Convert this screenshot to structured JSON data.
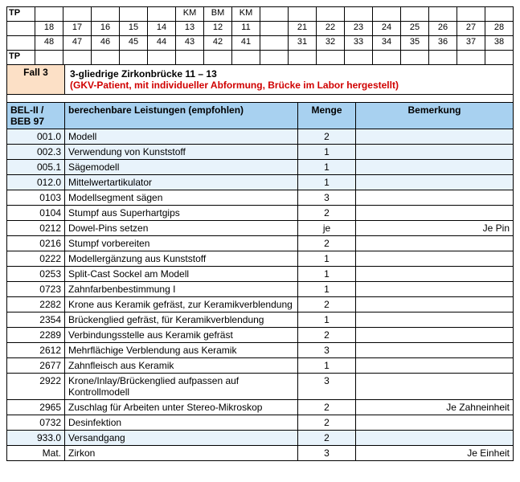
{
  "tooth_chart": {
    "tp_label": "TP",
    "markers_row": [
      "",
      "",
      "",
      "",
      "",
      "",
      "KM",
      "BM",
      "KM",
      "",
      "",
      "",
      "",
      "",
      "",
      "",
      "",
      ""
    ],
    "upper": [
      "",
      "18",
      "17",
      "16",
      "15",
      "14",
      "13",
      "12",
      "11",
      "",
      "21",
      "22",
      "23",
      "24",
      "25",
      "26",
      "27",
      "28"
    ],
    "lower": [
      "",
      "48",
      "47",
      "46",
      "45",
      "44",
      "43",
      "42",
      "41",
      "",
      "31",
      "32",
      "33",
      "34",
      "35",
      "36",
      "37",
      "38"
    ]
  },
  "case": {
    "label": "Fall 3",
    "title": "3-gliedrige Zirkonbrücke 11 – 13",
    "subtitle": "(GKV-Patient, mit individueller Abformung, Brücke im Labor hergestellt)"
  },
  "headers": {
    "code": "BEL-II / BEB 97",
    "desc": "berechenbare Leistungen (empfohlen)",
    "qty": "Menge",
    "remark": "Bemerkung"
  },
  "rows": [
    {
      "code": "001.0",
      "desc": "Modell",
      "qty": "2",
      "remark": "",
      "shade": true
    },
    {
      "code": "002.3",
      "desc": "Verwendung von Kunststoff",
      "qty": "1",
      "remark": "",
      "shade": true
    },
    {
      "code": "005.1",
      "desc": "Sägemodell",
      "qty": "1",
      "remark": "",
      "shade": true
    },
    {
      "code": "012.0",
      "desc": "Mittelwertartikulator",
      "qty": "1",
      "remark": "",
      "shade": true
    },
    {
      "code": "0103",
      "desc": "Modellsegment sägen",
      "qty": "3",
      "remark": "",
      "shade": false
    },
    {
      "code": "0104",
      "desc": "Stumpf aus Superhartgips",
      "qty": "2",
      "remark": "",
      "shade": false
    },
    {
      "code": "0212",
      "desc": "Dowel-Pins setzen",
      "qty": "je",
      "remark": "Je Pin",
      "shade": false
    },
    {
      "code": "0216",
      "desc": "Stumpf vorbereiten",
      "qty": "2",
      "remark": "",
      "shade": false
    },
    {
      "code": "0222",
      "desc": "Modellergänzung aus Kunststoff",
      "qty": "1",
      "remark": "",
      "shade": false
    },
    {
      "code": "0253",
      "desc": "Split-Cast Sockel am Modell",
      "qty": "1",
      "remark": "",
      "shade": false
    },
    {
      "code": "0723",
      "desc": "Zahnfarbenbestimmung I",
      "qty": "1",
      "remark": "",
      "shade": false
    },
    {
      "code": "2282",
      "desc": "Krone aus Keramik gefräst, zur Keramikverblendung",
      "qty": "2",
      "remark": "",
      "shade": false
    },
    {
      "code": "2354",
      "desc": "Brückenglied gefräst, für Keramikverblendung",
      "qty": "1",
      "remark": "",
      "shade": false
    },
    {
      "code": "2289",
      "desc": "Verbindungsstelle aus Keramik gefräst",
      "qty": "2",
      "remark": "",
      "shade": false
    },
    {
      "code": "2612",
      "desc": "Mehrflächige Verblendung aus Keramik",
      "qty": "3",
      "remark": "",
      "shade": false
    },
    {
      "code": "2677",
      "desc": "Zahnfleisch aus Keramik",
      "qty": "1",
      "remark": "",
      "shade": false
    },
    {
      "code": "2922",
      "desc": "Krone/Inlay/Brückenglied aufpassen auf Kontrollmodell",
      "qty": "3",
      "remark": "",
      "shade": false
    },
    {
      "code": "2965",
      "desc": "Zuschlag für Arbeiten unter Stereo-Mikroskop",
      "qty": "2",
      "remark": "Je Zahneinheit",
      "shade": false
    },
    {
      "code": "0732",
      "desc": "Desinfektion",
      "qty": "2",
      "remark": "",
      "shade": false
    },
    {
      "code": "933.0",
      "desc": "Versandgang",
      "qty": "2",
      "remark": "",
      "shade": true
    },
    {
      "code": "Mat.",
      "desc": "Zirkon",
      "qty": "3",
      "remark": "Je Einheit",
      "shade": false
    }
  ]
}
